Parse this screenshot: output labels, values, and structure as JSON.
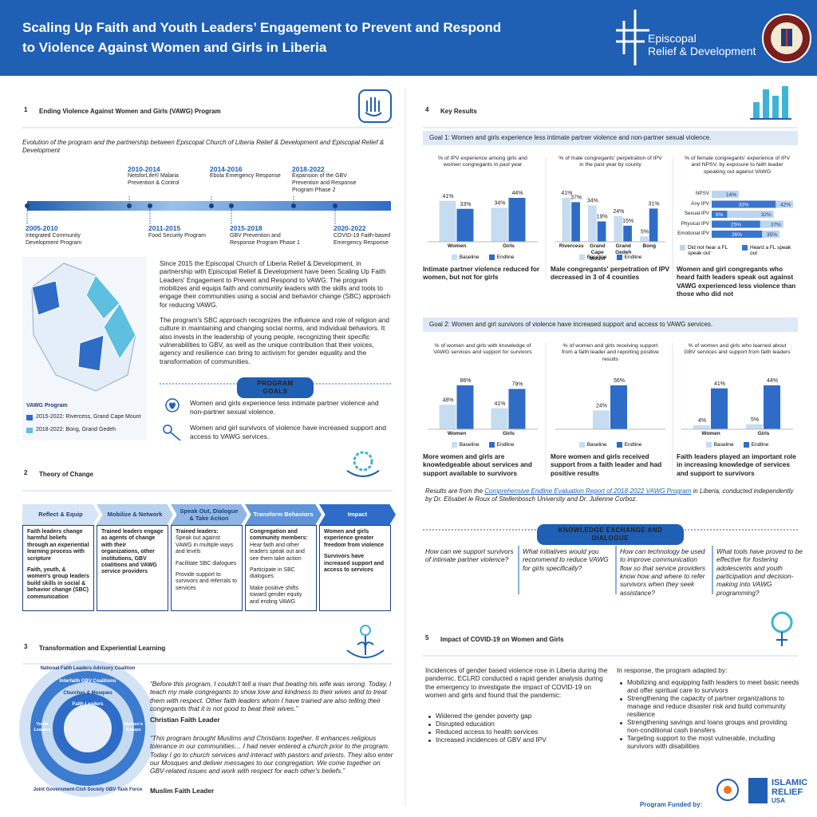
{
  "header": {
    "title": "Scaling Up Faith and Youth Leaders’ Engagement to Prevent and Respond to Violence Against Women and Girls in Liberia",
    "logo_text": [
      "Episcopal",
      "Relief & Development"
    ]
  },
  "section1": {
    "number": "1",
    "heading": "Ending Violence Against Women and Girls (VAWG) Program",
    "intro": "Evolution of the program and the partnership between Episcopal Church of Liberia Relief & Development and Episcopal Relief & Development",
    "timeline": [
      {
        "years": "2005-2010",
        "label": "Integrated Community Development Program"
      },
      {
        "years": "2010-2014",
        "label": "NetsforLife® Malaria Prevention & Control"
      },
      {
        "years": "2011-2015",
        "label": "Food Security Program"
      },
      {
        "years": "2014-2016",
        "label": "Ebola Emergency Response"
      },
      {
        "years": "2015-2018",
        "label": "GBV Prevention and Response Program Phase 1"
      },
      {
        "years": "2018-2022",
        "label": "Expansion of the GBV Prevention and Response Program Phase 2"
      },
      {
        "years": "2020-2022",
        "label": "COVID-19 Faith-based Emergency Response"
      }
    ],
    "paragraphs": [
      "Since 2015 the Episcopal Church of Liberia Relief & Development, in partnership with Episcopal Relief & Development have been Scaling Up Faith Leaders' Engagement to Prevent and Respond to VAWG. The program mobilizes and equips faith and community leaders with the skills and tools to engage their communities using a social and behavior change (SBC) approach for reducing VAWG.",
      "The program's SBC approach recognizes the influence and role of religion and culture in maintaining and changing social norms, and individual behaviors. It also invests in the leadership of young people, recognizing their specific vulnerabilities to GBV, as well as the unique contribution that their voices, agency and resilience can bring to activism for gender equality and the transformation of communities."
    ],
    "map_legend": {
      "title": "VAWG Program",
      "items": [
        "2015-2022: Rivercess, Grand Cape Mount",
        "2018-2022: Bong, Grand Gedeh"
      ]
    },
    "goals_title": "PROGRAM GOALS",
    "goals": [
      "Women and girls experience less intimate partner violence  and non-partner sexual violence.",
      "Women and girl survivors of violence have increased support and access to VAWG services."
    ]
  },
  "section2": {
    "number": "2",
    "heading": "Theory of Change",
    "stages": [
      {
        "title": "Reflect & Equip",
        "items": [
          "Faith leaders change harmful beliefs through an experiential learning process with scripture",
          "Faith, youth, & women's group leaders build skills in social & behavior change (SBC) communication"
        ]
      },
      {
        "title": "Mobilize & Network",
        "items": [
          "Trained leaders engage as agents of change with their organizations, other institutions, GBV coalitions and VAWG service providers"
        ]
      },
      {
        "title": "Speak Out, Dialogue & Take Action",
        "lead": "Trained leaders:",
        "items": [
          "Speak out against VAWG in multiple ways and levels",
          "Facilitate SBC dialogues",
          "Provide support to survivors and referrals to services"
        ]
      },
      {
        "title": "Transform Behaviors",
        "lead": "Congregation and community members:",
        "items": [
          "Hear faith and other leaders speak out and see them take action",
          "Participate in SBC dialogues",
          "Make positive shifts toward gender equity and ending VAWG"
        ]
      },
      {
        "title": "Impact",
        "items": [
          "Women and girls experience greater freedom from violence",
          "Survivors have increased support and access to services"
        ]
      }
    ]
  },
  "section3": {
    "number": "3",
    "heading": "Transformation and Experiential Learning",
    "rings": [
      "National Faith Leaders Advisory Coalition",
      "Interfaith GBV Coalitions",
      "Churches & Mosques",
      "Faith Leaders",
      "Joint Government-Civil Society GBV Task Force",
      "Youth Leaders",
      "Women's Groups"
    ],
    "quotes": [
      {
        "text": "“Before this program, I couldn't tell a man that beating his wife was wrong. Today, I teach my male congregants to show love and kindness to their wives and to treat them with respect.  Other faith leaders whom I have trained are also telling their congregants that it is not good to beat their wives.”",
        "attribution": "Christian Faith Leader"
      },
      {
        "text": "“This program brought Muslims and Christians together. It enhances religious tolerance in our communities… I had never entered a church prior to the program. Today I go to church services and interact with pastors and priests. They also enter our Mosques and deliver messages to our congregation. We come together on GBV-related issues and work with respect for each other's beliefs.”",
        "attribution": "Muslim Faith Leader"
      }
    ]
  },
  "section4": {
    "number": "4",
    "heading": "Key Results",
    "goals": [
      "Goal 1: Women and girls experience less intimate partner violence and non-partner sexual violence.",
      "Goal 2: Women and girl survivors of violence have increased support and access to VAWG services."
    ],
    "note": {
      "before": "Results are from the ",
      "link": "Comprehensive Endline Evaluation Report of 2018-2022 VAWG Program",
      "after": " in Liberia, conducted independently by Dr. Elisabet le Roux of Stellenbosch University and Dr. Julienne Corboz."
    },
    "exchange_title": "KNOWLEDGE EXCHANGE AND DIALOGUE",
    "questions": [
      "How can we support survivors of intimate partner violence?",
      "What initiatives would you recommend to reduce VAWG for girls specifically?",
      "How can technology be used to improve communication flow so that service providers know how and where to refer survivors when they seek assistance?",
      "What tools have proved to be effective for fostering adolescents and youth participation and decision-making into VAWG programming?"
    ]
  },
  "section5": {
    "number": "5",
    "heading": "Impact of COVID-19 on Women and Girls",
    "left_text": "Incidences of gender based violence rose in Liberia during the pandemic. ECLRD conducted a rapid gender analysis during the emergency to investigate the impact of COVID-19 on women and girls and found that the pandemic:",
    "left_bullets": [
      "Widened the gender poverty gap",
      "Disrupted education",
      "Reduced access to health services",
      "Increased incidences of GBV and IPV"
    ],
    "right_text": "In response, the program adapted by:",
    "right_bullets": [
      "Mobilizing and equipping faith leaders to meet basic needs and offer spiritual care to survivors",
      "Strengthening the capacity of partner organizations to manage and reduce disaster risk and build community resilience",
      "Strengthening savings and loans groups and providing non-conditional cash transfers",
      "Targeting support to the most vulnerable, including survivors with disabilities"
    ]
  },
  "footer": {
    "funded_by": "Program Funded by:",
    "funder": [
      "ISLAMIC",
      "RELIEF",
      "USA"
    ]
  },
  "chart_data": [
    {
      "type": "bar",
      "title": "% of IPV experience among girls and women congregants in past year",
      "caption": "Intimate partner violence reduced for women, but not for girls",
      "categories": [
        "Women",
        "Girls"
      ],
      "series": [
        {
          "name": "Baseline",
          "color": "#c6dcf1",
          "values": [
            41,
            34
          ],
          "value_labels": [
            "41%",
            "34%"
          ]
        },
        {
          "name": "Endline",
          "color": "#2e6cc7",
          "values": [
            33,
            44
          ],
          "value_labels": [
            "33%",
            "44%"
          ]
        }
      ]
    },
    {
      "type": "bar",
      "title": "% of male congregants' perpetration of IPV in the past year by county",
      "caption": "Male congregants' perpetration of IPV decreased in 3 of 4 counties",
      "categories": [
        "Rivercess",
        "Grand Cape Mount",
        "Grand Gedeh",
        "Bong"
      ],
      "series": [
        {
          "name": "Baseline",
          "color": "#c6dcf1",
          "values": [
            41,
            34,
            24,
            5
          ],
          "value_labels": [
            "41%",
            "34%",
            "24%",
            "5%"
          ]
        },
        {
          "name": "Endline",
          "color": "#2e6cc7",
          "values": [
            37,
            19,
            15,
            31
          ],
          "value_labels": [
            "37%",
            "19%",
            "15%",
            "31%"
          ]
        }
      ]
    },
    {
      "type": "hbar",
      "title": "% of female congregants' experience of IPV and NPSV, by exposure to faith leader speaking out against VAWG",
      "caption": "Women and girl congregants who heard faith leaders speak out against VAWG experienced less violence than those who did not",
      "categories": [
        "NPSV",
        "Any IPV",
        "Sexual IPV",
        "Physical IPV",
        "Emotional IPV"
      ],
      "series": [
        {
          "name": "Did not hear a FL speak out",
          "color": "#bcd4ee",
          "values": [
            14,
            42,
            32,
            37,
            35
          ],
          "value_labels": [
            "14%",
            "42%",
            "32%",
            "37%",
            "35%"
          ]
        },
        {
          "name": "Heard a FL speak out",
          "color": "#3a76cd",
          "values": [
            null,
            33,
            8,
            25,
            26
          ],
          "value_labels": [
            null,
            "33%",
            "8%",
            "25%",
            "26%"
          ]
        }
      ]
    },
    {
      "type": "bar",
      "title": "% of women and girls with knowledge of VAWG services and support for survivors",
      "caption": "More women and girls are knowledgeable about services and support available to survivors",
      "categories": [
        "Women",
        "Girls"
      ],
      "series": [
        {
          "name": "Baseline",
          "color": "#c6dcf1",
          "values": [
            48,
            41
          ],
          "value_labels": [
            "48%",
            "41%"
          ]
        },
        {
          "name": "Endline",
          "color": "#2e6cc7",
          "values": [
            86,
            79
          ],
          "value_labels": [
            "86%",
            "79%"
          ]
        }
      ]
    },
    {
      "type": "bar",
      "title": "% of women and girls receiving support from a faith leader and reporting positive results",
      "caption": "More women and girls received support from a faith leader and had positive results",
      "categories": [
        null
      ],
      "series": [
        {
          "name": "Baseline",
          "color": "#c6dcf1",
          "values": [
            24
          ],
          "value_labels": [
            "24%"
          ]
        },
        {
          "name": "Endline",
          "color": "#2e6cc7",
          "values": [
            56
          ],
          "value_labels": [
            "56%"
          ]
        }
      ]
    },
    {
      "type": "bar",
      "title": "% of women and girls who learned about GBV services and support from faith leaders",
      "caption": "Faith leaders played an important role in increasing knowledge of services and support to survivors",
      "categories": [
        "Women",
        "Girls"
      ],
      "series": [
        {
          "name": "Baseline",
          "color": "#c6dcf1",
          "values": [
            4,
            5
          ],
          "value_labels": [
            "4%",
            "5%"
          ]
        },
        {
          "name": "Endline",
          "color": "#2e6cc7",
          "values": [
            41,
            44
          ],
          "value_labels": [
            "41%",
            "44%"
          ]
        }
      ]
    }
  ]
}
